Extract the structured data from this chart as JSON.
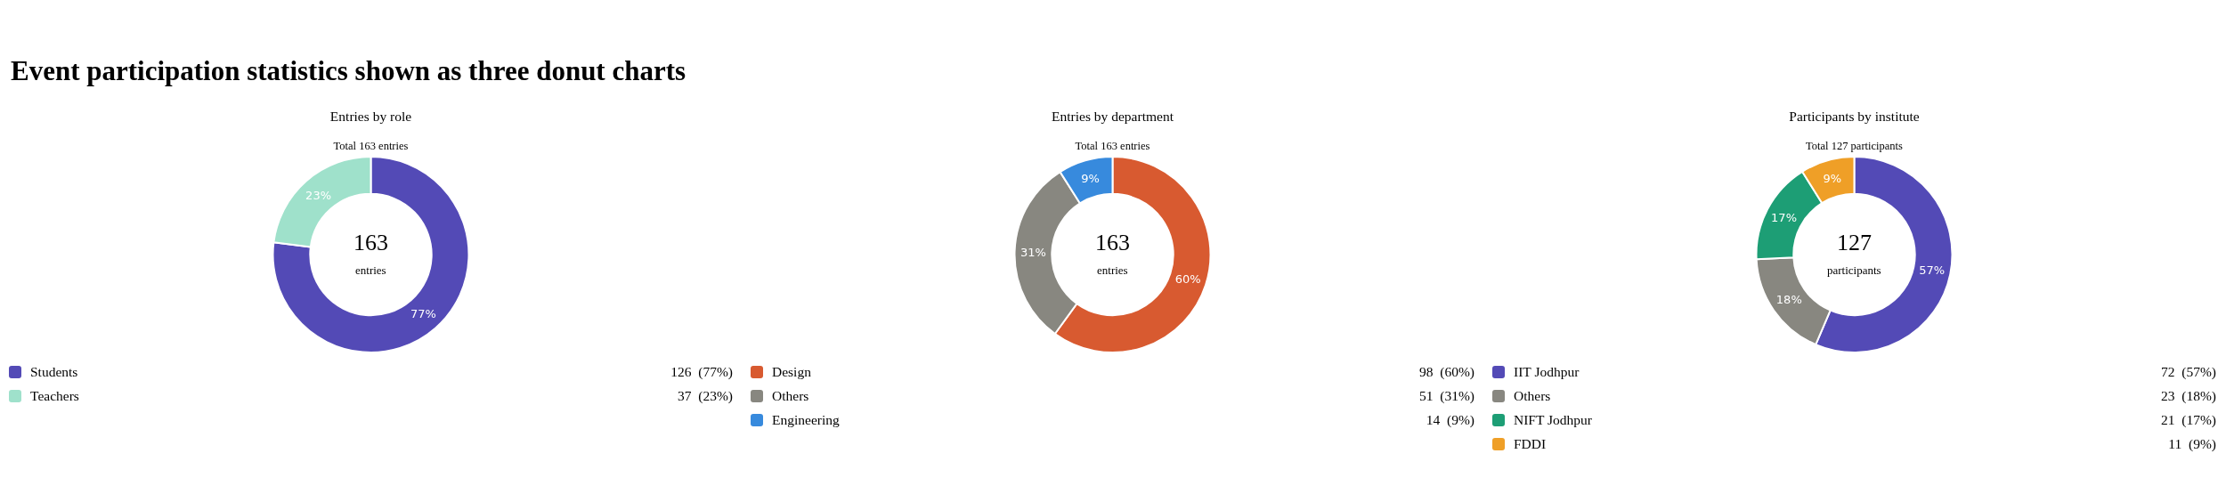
{
  "chart_data": [
    {
      "type": "other",
      "title": "Event participation statistics shown as three donut charts"
    },
    {
      "type": "donut",
      "title": "Entries by role",
      "subtitle": "Total 163 entries",
      "annotations": [
        "163",
        "entries",
        "126  (77%)",
        "37  (23%)"
      ],
      "categories": [
        "Students",
        "Teachers"
      ],
      "values": [
        77,
        23
      ],
      "colors": [
        "#534ab6",
        "#9fe1cb"
      ],
      "value_labels": [
        "77%",
        "23%"
      ],
      "legend": "bottom"
    },
    {
      "type": "donut",
      "title": "Entries by department",
      "subtitle": "Total 163 entries",
      "annotations": [
        "163",
        "entries",
        "98  (60%)",
        "51  (31%)",
        "14  (9%)"
      ],
      "categories": [
        "Design",
        "Others",
        "Engineering"
      ],
      "values": [
        60,
        31,
        9
      ],
      "colors": [
        "#d85a30",
        "#888780",
        "#378add"
      ],
      "value_labels": [
        "60%",
        "31%",
        "9%"
      ],
      "legend": "bottom"
    },
    {
      "type": "donut",
      "title": "Participants by institute",
      "subtitle": "Total 127 participants",
      "annotations": [
        "127",
        "participants",
        "72  (57%)",
        "23  (18%)",
        "21  (17%)",
        "11  (9%)"
      ],
      "categories": [
        "IIT Jodhpur",
        "Others",
        "NIFT Jodhpur",
        "FDDI"
      ],
      "values": [
        57,
        18,
        17,
        9
      ],
      "colors": [
        "#534ab6",
        "#888780",
        "#1d9e75",
        "#ef9f27"
      ],
      "value_labels": [
        "57%",
        "18%",
        "17%",
        "9%"
      ],
      "legend": "bottom"
    }
  ]
}
